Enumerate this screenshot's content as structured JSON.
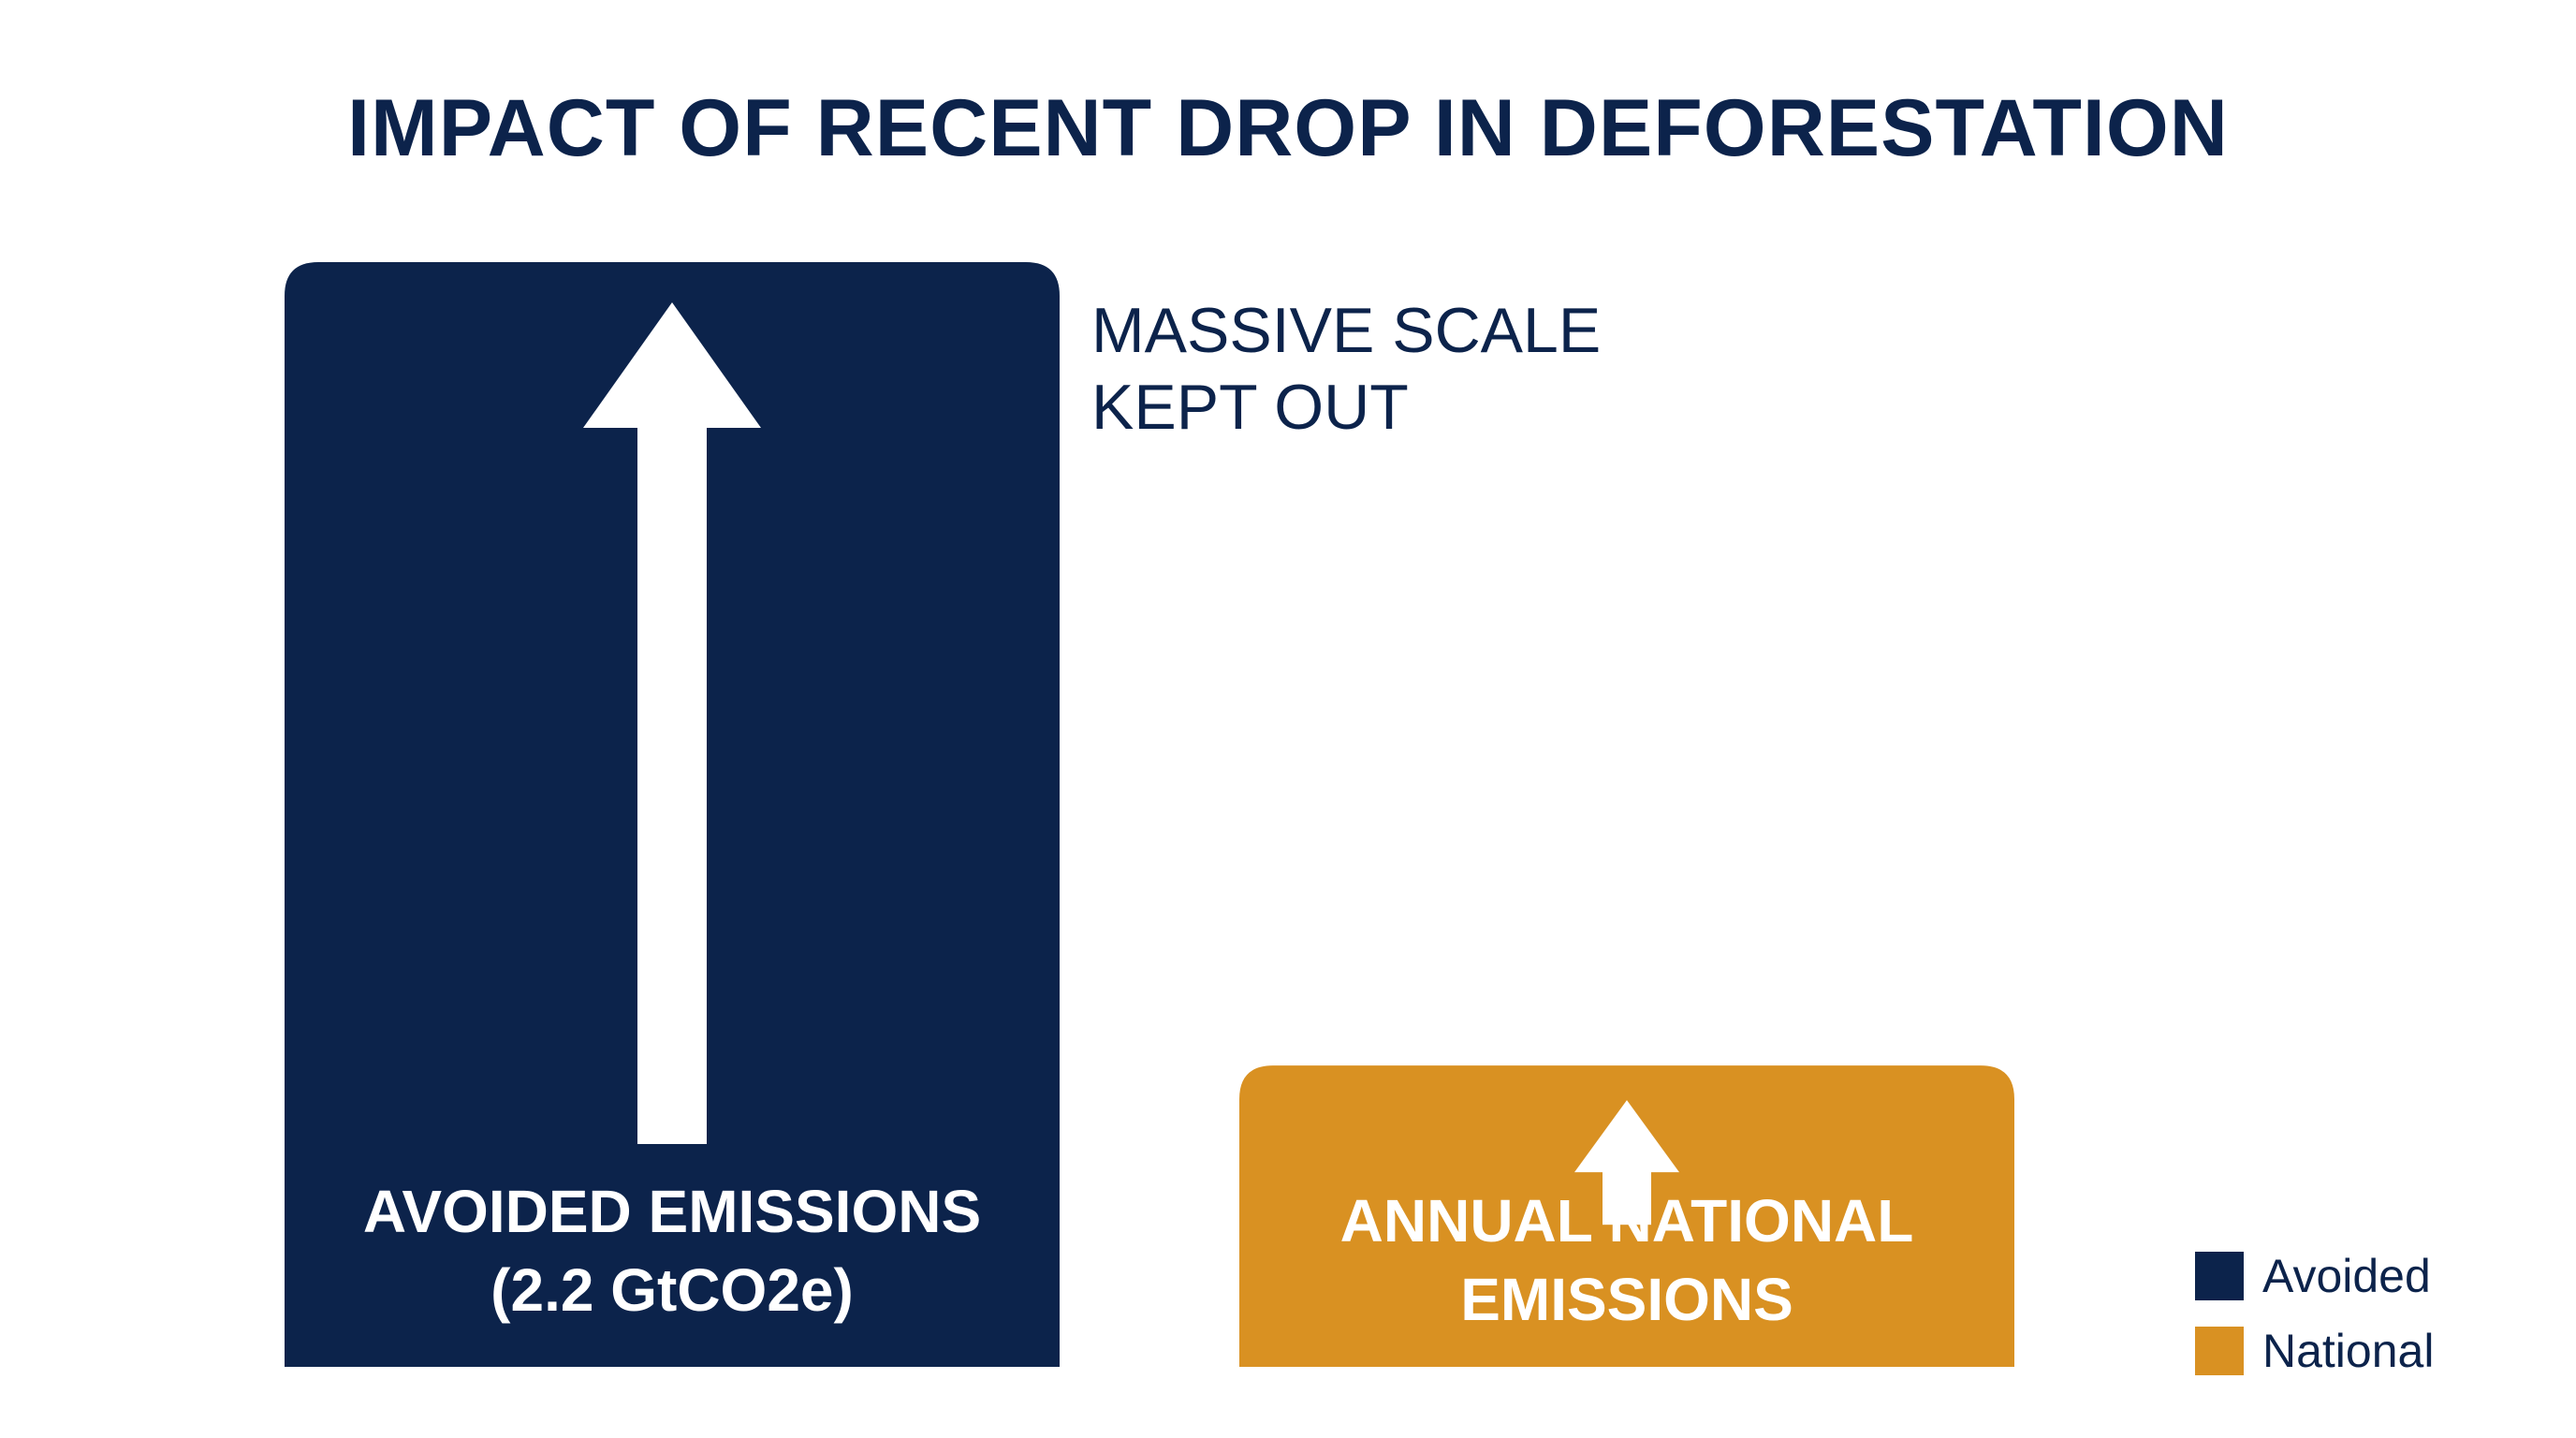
{
  "chart_data": {
    "type": "bar",
    "title": "IMPACT OF RECENT DROP IN DEFORESTATION",
    "categories": [
      "AVOIDED EMISSIONS (2.2 GtCO2e)",
      "ANNUAL NATIONAL EMISSIONS"
    ],
    "bars": [
      {
        "label_lines": [
          "AVOIDED EMISSIONS",
          "(2.2 GtCO2e)"
        ],
        "value": 2.2,
        "color": "#0c234b",
        "arrow": "up"
      },
      {
        "label_lines": [
          "ANNUAL NATIONAL",
          "EMISSIONS"
        ],
        "value": 0.6,
        "color": "#d99122",
        "arrow": "up"
      }
    ],
    "unit": "GtCO2e",
    "ylim": [
      0,
      2.2
    ],
    "annotation": [
      "MASSIVE SCALE",
      "KEPT OUT"
    ],
    "legend": {
      "position": "bottom-right",
      "items": [
        {
          "label": "Avoided",
          "color": "#0c234b"
        },
        {
          "label": "National",
          "color": "#d99122"
        }
      ]
    },
    "grid": false,
    "axes_shown": false
  }
}
